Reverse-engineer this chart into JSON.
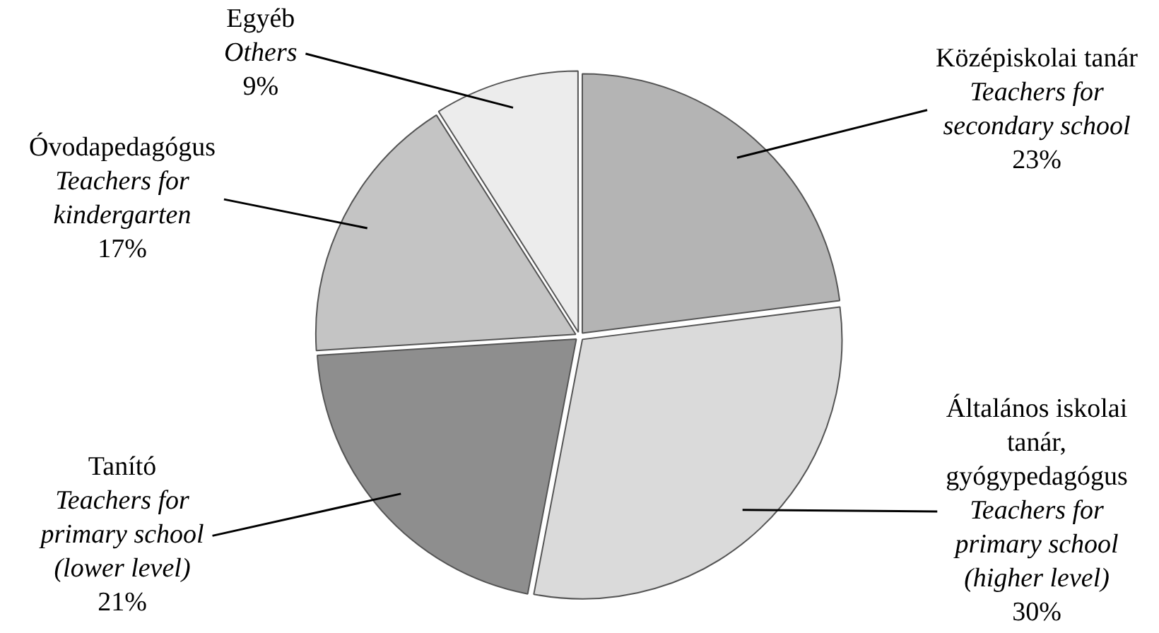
{
  "chart_data": {
    "type": "pie",
    "categories": [
      "Középiskolai tanár\nTeachers for secondary school",
      "Általános iskolai tanár, gyógypedagógus\nTeachers for primary school (higher level)",
      "Tanító\nTeachers for primary school (lower level)",
      "Óvodapedagógus\nTeachers for kindergarten",
      "Egyéb\nOthers"
    ],
    "values": [
      23,
      30,
      21,
      17,
      9
    ],
    "value_labels": [
      "23%",
      "30%",
      "21%",
      "17%",
      "9%"
    ],
    "colors": [
      "#b4b4b4",
      "#dadada",
      "#8e8e8e",
      "#c4c4c4",
      "#ececec"
    ],
    "legend": false
  }
}
